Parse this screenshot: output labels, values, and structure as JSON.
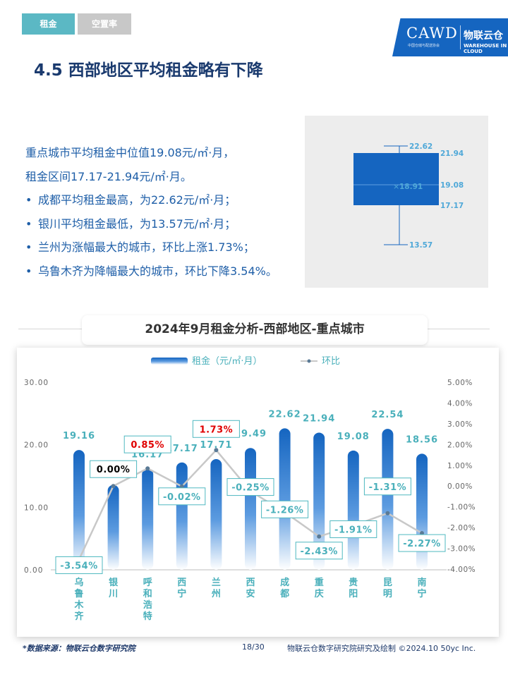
{
  "tabs": [
    {
      "label": "租金",
      "active": true
    },
    {
      "label": "空置率",
      "active": false
    }
  ],
  "logo": {
    "main": "CAWD",
    "small": "中国仓储与配送协会",
    "cn": "物联云仓",
    "en": "WAREHOUSE IN CLOUD"
  },
  "page_title": "4.5 西部地区平均租金略有下降",
  "summary": {
    "intro": [
      "重点城市平均租金中位值19.08元/㎡·月，",
      "租金区间17.17-21.94元/㎡·月。"
    ],
    "bullets": [
      "成都平均租金最高，为22.62元/㎡·月；",
      "银川平均租金最低，为13.57元/㎡·月；",
      "兰州为涨幅最大的城市，环比上涨1.73%；",
      "乌鲁木齐为降幅最大的城市，环比下降3.54%。"
    ]
  },
  "boxplot": {
    "max": "22.62",
    "q3": "21.94",
    "mean": "18.91",
    "median": "19.08",
    "q1": "17.17",
    "min": "13.57",
    "color": "#1565c0"
  },
  "chart_title": "2024年9月租金分析-西部地区-重点城市",
  "chart_data": {
    "type": "bar",
    "title": "2024年9月租金分析-西部地区-重点城市",
    "categories": [
      "乌鲁木齐",
      "银川",
      "呼和浩特",
      "西宁",
      "兰州",
      "西安",
      "成都",
      "重庆",
      "贵阳",
      "昆明",
      "南宁"
    ],
    "series": [
      {
        "name": "租金（元/㎡·月）",
        "axis": "left",
        "type": "bar",
        "values": [
          19.16,
          13.57,
          16.17,
          17.17,
          17.71,
          19.49,
          22.62,
          21.94,
          19.08,
          22.54,
          18.56
        ],
        "labels": [
          "19.16",
          "13.57",
          "16.17",
          "17.17",
          "17.71",
          "19.49",
          "22.62",
          "21.94",
          "19.08",
          "22.54",
          "18.56"
        ]
      },
      {
        "name": "环比",
        "axis": "right",
        "type": "line",
        "values": [
          -3.54,
          0.0,
          0.85,
          -0.02,
          1.73,
          -0.25,
          -1.26,
          -2.43,
          -1.91,
          -1.31,
          -2.27
        ],
        "labels": [
          "-3.54%",
          "0.00%",
          "0.85%",
          "-0.02%",
          "1.73%",
          "-0.25%",
          "-1.26%",
          "-2.43%",
          "-1.91%",
          "-1.31%",
          "-2.27%"
        ]
      }
    ],
    "left_axis": {
      "ticks": [
        "0.00",
        "10.00",
        "20.00",
        "30.00"
      ],
      "range": [
        0,
        30
      ]
    },
    "right_axis": {
      "ticks": [
        "5.00%",
        "4.00%",
        "3.00%",
        "2.00%",
        "1.00%",
        "0.00%",
        "-1.00%",
        "-2.00%",
        "-3.00%",
        "-4.00%"
      ],
      "range": [
        -4,
        5
      ]
    },
    "legend_position": "top-center",
    "grid": false,
    "colors": {
      "bar": "#1565c0",
      "line": "#c8c8c8",
      "point": "#5a7a96",
      "label_border": "#4fb8c0",
      "label_text": "#4ab0bb",
      "positive_text": "#e00000",
      "zero_text": "#000000"
    }
  },
  "footer": {
    "source": "*数据来源：物联云仓数字研究院",
    "page": "18/30",
    "credit": "物联云仓数字研究院研究及绘制  ©2024.10 50yc Inc."
  }
}
